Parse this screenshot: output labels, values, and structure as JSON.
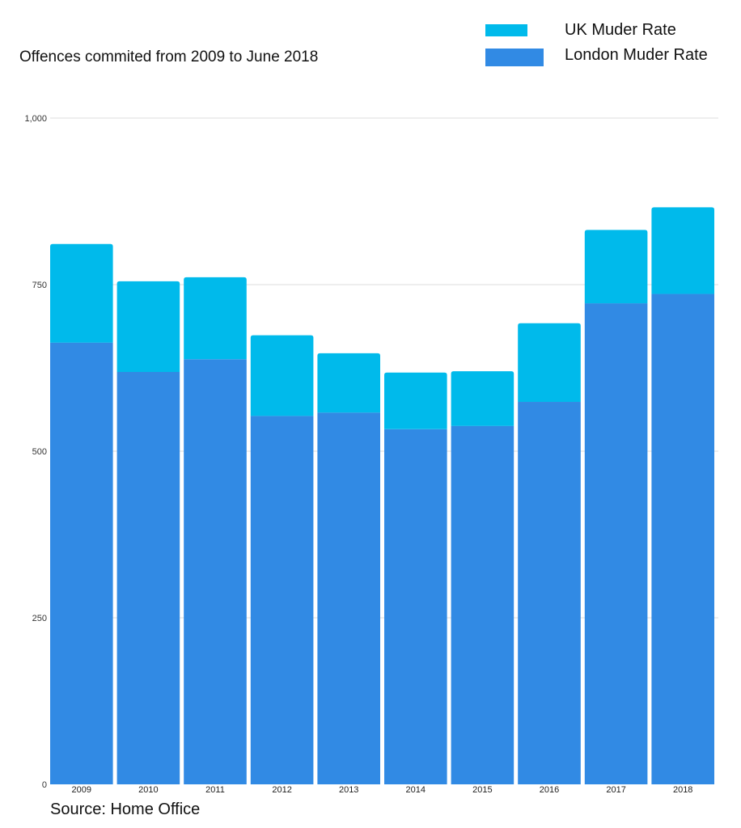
{
  "chart_data": {
    "type": "bar",
    "stacked": true,
    "title": "Offences commited from 2009 to June 2018",
    "categories": [
      "2009",
      "2010",
      "2011",
      "2012",
      "2013",
      "2014",
      "2015",
      "2016",
      "2017",
      "2018"
    ],
    "series": [
      {
        "name": "London Muder Rate",
        "color": "#318AE4",
        "values": [
          663,
          619,
          638,
          553,
          558,
          533,
          538,
          574,
          722,
          736
        ]
      },
      {
        "name": "UK Muder Rate",
        "color": "#00BAEB",
        "values": [
          148,
          136,
          123,
          121,
          89,
          85,
          82,
          118,
          110,
          130
        ]
      }
    ],
    "ylim": [
      0,
      1000
    ],
    "yticks": [
      0,
      250,
      500,
      750,
      1000
    ],
    "ytick_labels": [
      "0",
      "250",
      "500",
      "750",
      "1,000"
    ],
    "grid": true,
    "legend_position": "top-right"
  },
  "source": "Source: Home Office"
}
